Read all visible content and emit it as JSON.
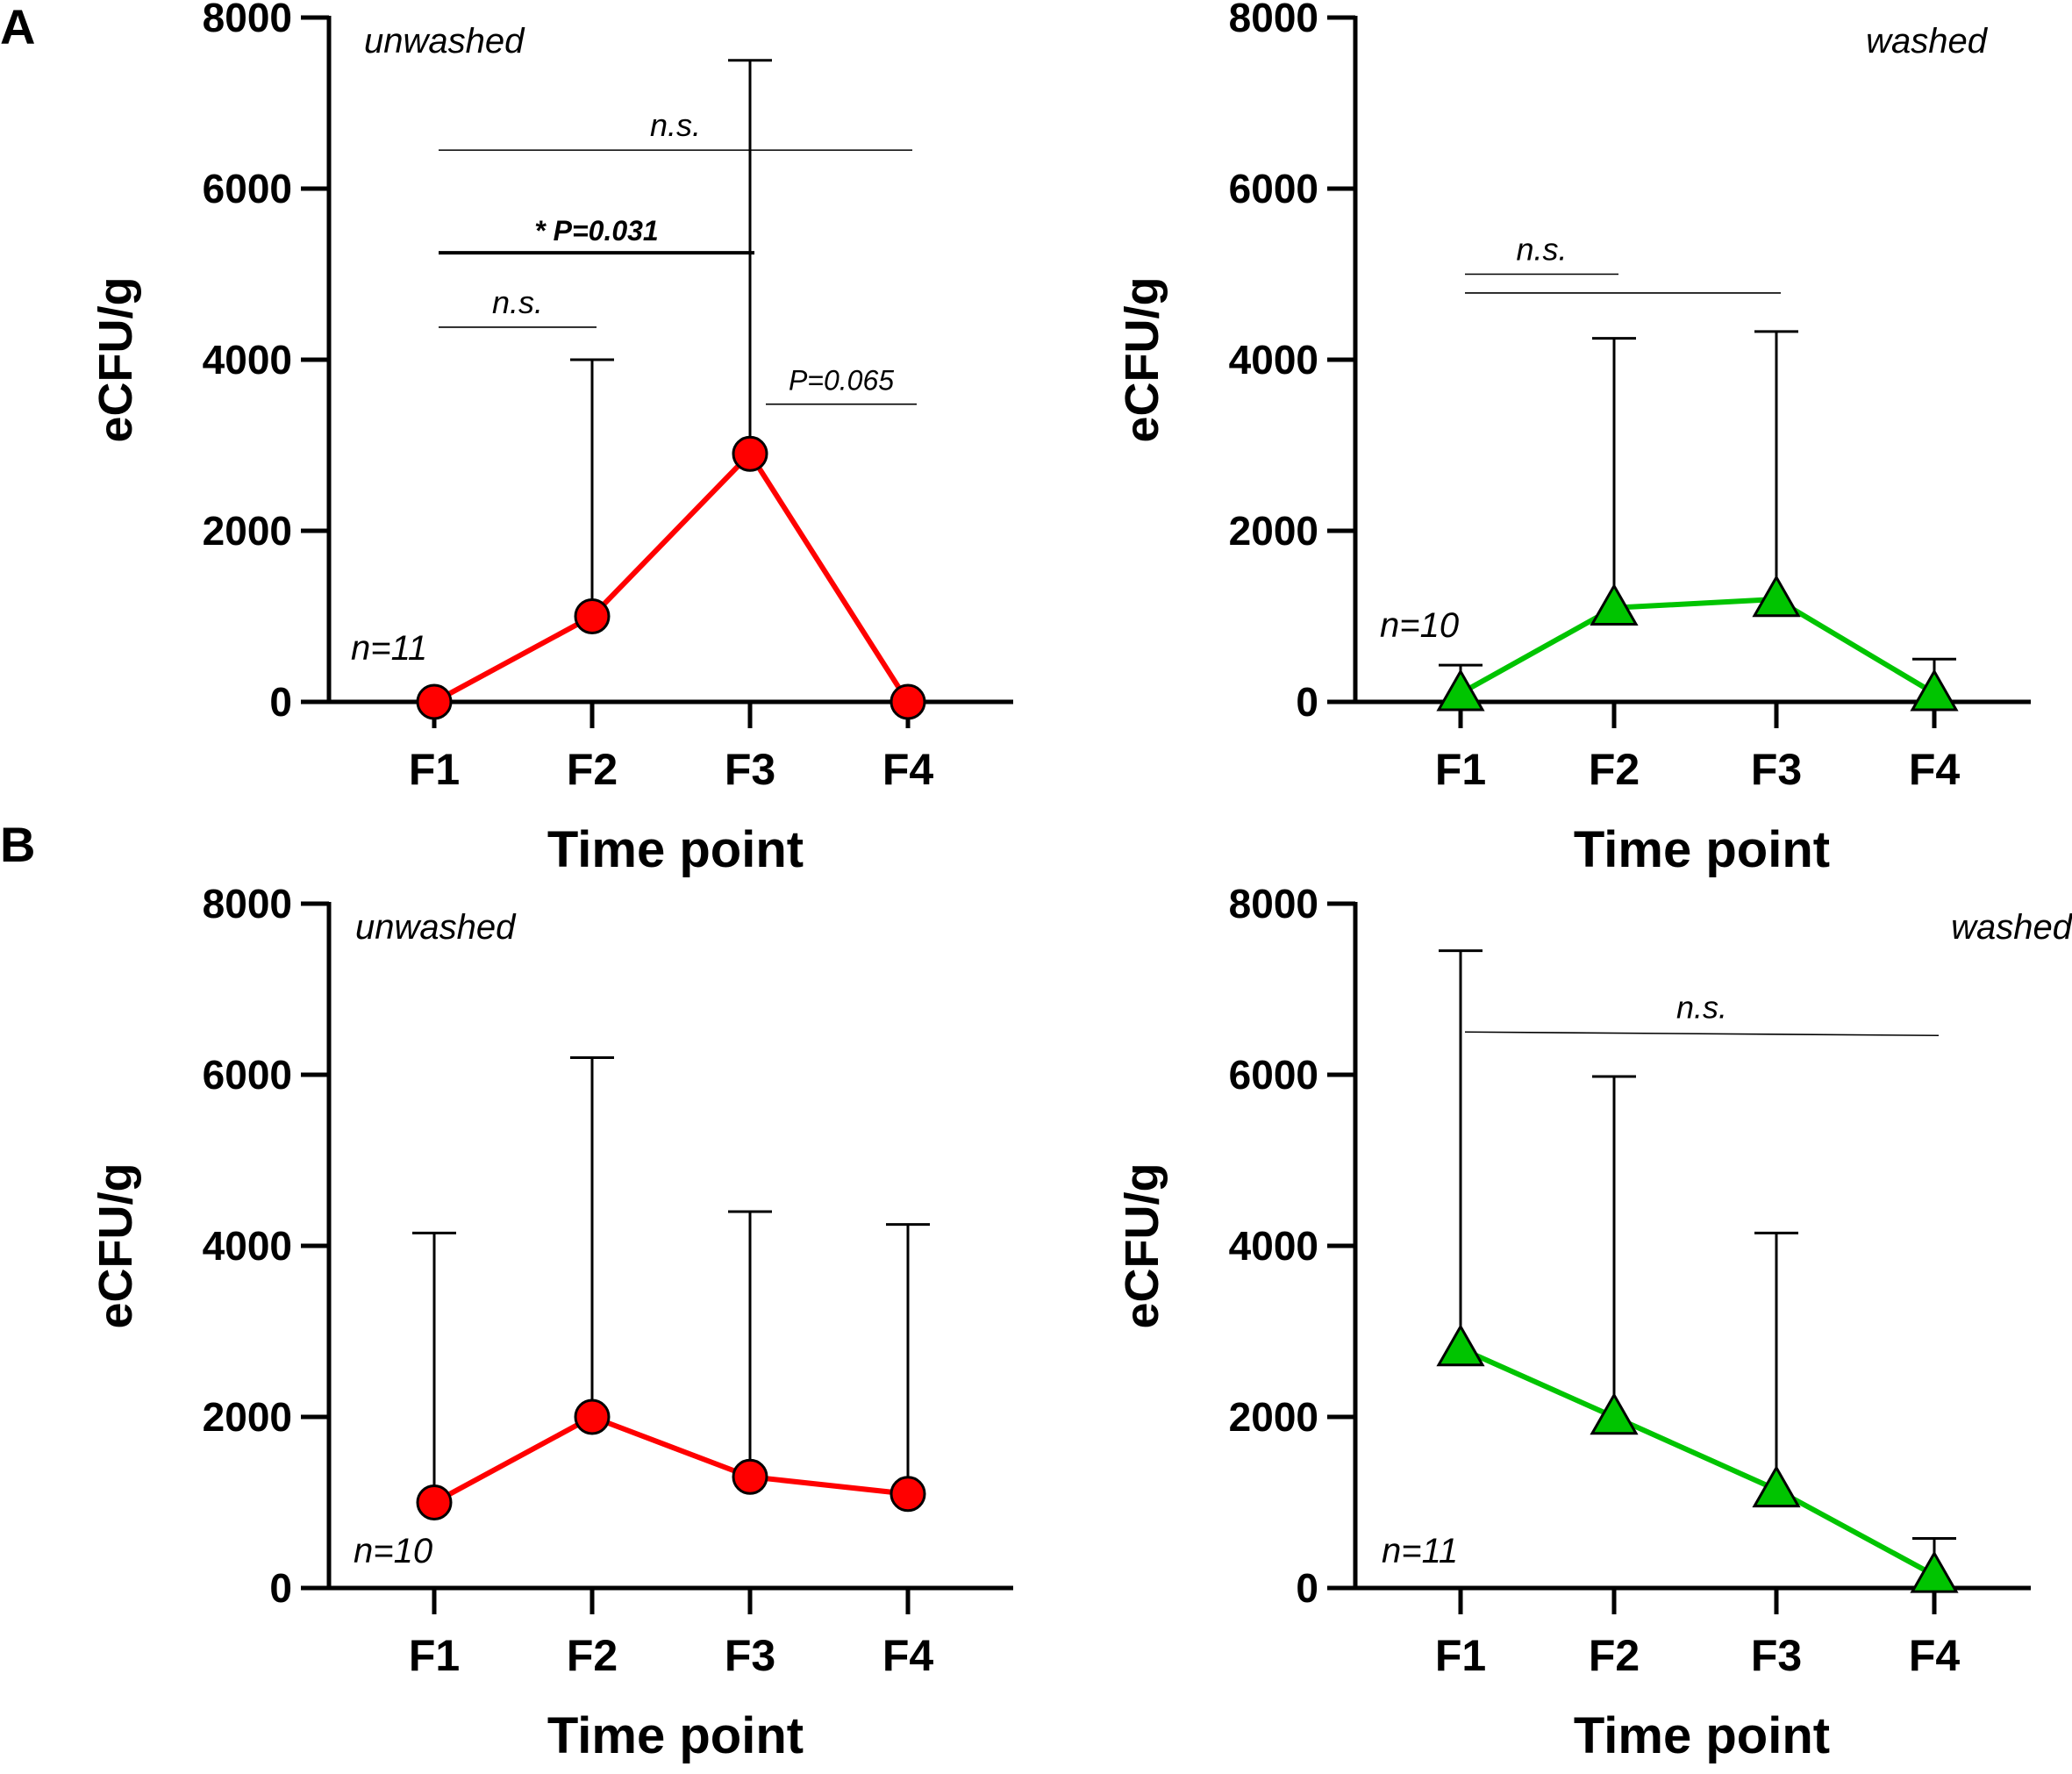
{
  "panel_labels": [
    "A",
    "B"
  ],
  "chart_data": [
    {
      "type": "line",
      "panel": "A",
      "condition": "unwashed",
      "sample_label": "n=11",
      "xlabel": "Time point",
      "ylabel": "eCFU/g",
      "ylim": [
        0,
        8000
      ],
      "yticks": [
        0,
        2000,
        4000,
        6000,
        8000
      ],
      "categories": [
        "F1",
        "F2",
        "F3",
        "F4"
      ],
      "marker": "circle",
      "color": "#ff0000",
      "values": [
        0,
        1000,
        2900,
        0
      ],
      "error_upper": [
        0,
        4000,
        7500,
        0
      ],
      "comparisons": [
        {
          "from": "F1",
          "to": "F2",
          "label": "n.s.",
          "y": 4380
        },
        {
          "from": "F1",
          "to": "F3",
          "label": "* P=0.031",
          "y": 5250,
          "bold": true
        },
        {
          "from": "F1",
          "to": "F4",
          "label": "n.s.",
          "y": 6450
        },
        {
          "from": "F3",
          "to": "F4",
          "label": "P=0.065",
          "y": 3480
        }
      ]
    },
    {
      "type": "line",
      "panel": "A",
      "condition": "washed",
      "sample_label": "n=10",
      "xlabel": "Time point",
      "ylabel": "eCFU/g",
      "ylim": [
        0,
        8000
      ],
      "yticks": [
        0,
        2000,
        4000,
        6000,
        8000
      ],
      "categories": [
        "F1",
        "F2",
        "F3",
        "F4"
      ],
      "marker": "triangle",
      "color": "#00c400",
      "values": [
        100,
        1100,
        1200,
        100
      ],
      "error_upper": [
        430,
        4250,
        4330,
        500
      ],
      "comparisons": [
        {
          "from": "F1",
          "to": "F2",
          "label": "n.s.",
          "y": 5000
        },
        {
          "from": "F1",
          "to": "F3",
          "label": "",
          "y": 4780
        }
      ]
    },
    {
      "type": "line",
      "panel": "B",
      "condition": "unwashed",
      "sample_label": "n=10",
      "xlabel": "Time point",
      "ylabel": "eCFU/g",
      "ylim": [
        0,
        8000
      ],
      "yticks": [
        0,
        2000,
        4000,
        6000,
        8000
      ],
      "categories": [
        "F1",
        "F2",
        "F3",
        "F4"
      ],
      "marker": "circle",
      "color": "#ff0000",
      "values": [
        1000,
        2000,
        1300,
        1100
      ],
      "error_upper": [
        4150,
        6200,
        4400,
        4250
      ],
      "comparisons": []
    },
    {
      "type": "line",
      "panel": "B",
      "condition": "washed",
      "sample_label": "n=11",
      "xlabel": "Time point",
      "ylabel": "eCFU/g",
      "ylim": [
        0,
        8000
      ],
      "yticks": [
        0,
        2000,
        4000,
        6000,
        8000
      ],
      "categories": [
        "F1",
        "F2",
        "F3",
        "F4"
      ],
      "marker": "triangle",
      "color": "#00c400",
      "values": [
        2800,
        2000,
        1150,
        150
      ],
      "error_upper": [
        7450,
        5980,
        4150,
        580
      ],
      "comparisons": [
        {
          "from": "F1",
          "to": "F4",
          "label": "n.s.",
          "y": 6500
        }
      ]
    }
  ]
}
